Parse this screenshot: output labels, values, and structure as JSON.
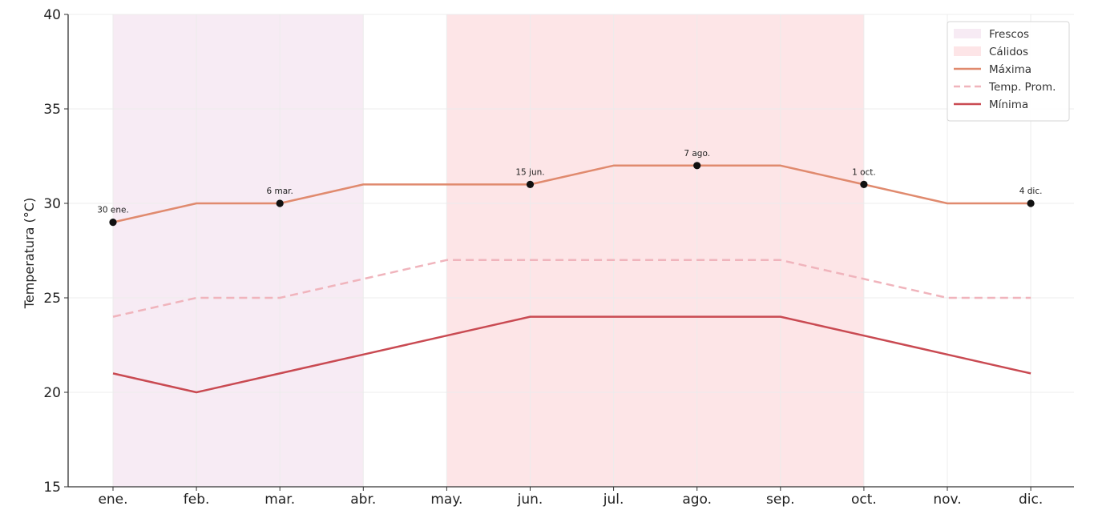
{
  "chart_data": {
    "type": "line",
    "title": "",
    "xlabel": "",
    "ylabel": "Temperatura (°C)",
    "categories": [
      "ene.",
      "feb.",
      "mar.",
      "abr.",
      "may.",
      "jun.",
      "jul.",
      "ago.",
      "sep.",
      "oct.",
      "nov.",
      "dic."
    ],
    "ylim": [
      15,
      40
    ],
    "yticks": [
      15,
      20,
      25,
      30,
      35,
      40
    ],
    "grid": true,
    "legend_position": "top-right",
    "series": [
      {
        "name": "Máxima",
        "values": [
          29,
          30,
          30,
          31,
          31,
          31,
          32,
          32,
          32,
          31,
          30,
          30
        ],
        "color": "#e08a6e",
        "style": "solid"
      },
      {
        "name": "Temp. Prom.",
        "values": [
          24,
          25,
          25,
          26,
          27,
          27,
          27,
          27,
          27,
          26,
          25,
          25
        ],
        "color": "#f0b4bc",
        "style": "dashed"
      },
      {
        "name": "Mínima",
        "values": [
          21,
          20,
          21,
          22,
          23,
          24,
          24,
          24,
          24,
          23,
          22,
          21
        ],
        "color": "#c94a52",
        "style": "solid"
      }
    ],
    "bands": [
      {
        "name": "Frescos",
        "from": 0,
        "to": 3,
        "color": "#f7ebf4"
      },
      {
        "name": "Cálidos",
        "from": 4,
        "to": 9,
        "color": "#fde5e7"
      }
    ],
    "annotations": [
      {
        "month": 0,
        "value": 29,
        "label": "30 ene."
      },
      {
        "month": 2,
        "value": 30,
        "label": "6 mar."
      },
      {
        "month": 5,
        "value": 31,
        "label": "15 jun."
      },
      {
        "month": 7,
        "value": 32,
        "label": "7 ago."
      },
      {
        "month": 9,
        "value": 31,
        "label": "1 oct."
      },
      {
        "month": 11,
        "value": 30,
        "label": "4 dic."
      }
    ]
  }
}
